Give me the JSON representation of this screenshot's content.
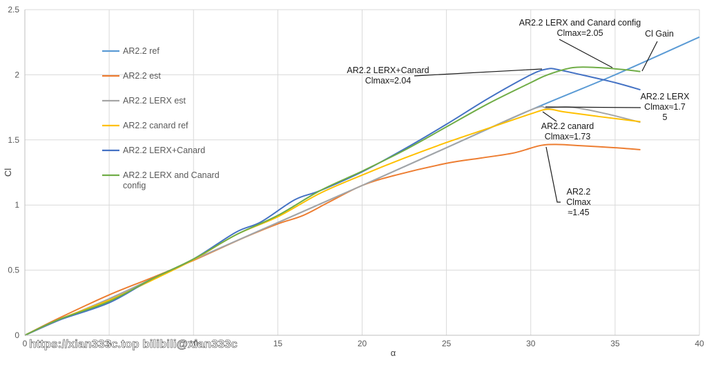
{
  "chart_data": {
    "type": "line",
    "xlabel": "α",
    "ylabel": "Cl",
    "xlim": [
      0,
      40
    ],
    "ylim": [
      0,
      2.5
    ],
    "x_ticks": [
      "0",
      "5",
      "10",
      "15",
      "20",
      "25",
      "30",
      "35",
      "40"
    ],
    "y_ticks": [
      "0",
      "0.5",
      "1",
      "1.5",
      "2",
      "2.5"
    ],
    "grid": true,
    "legend_position": "left",
    "series": [
      {
        "name": "AR2.2 ref",
        "color": "#5B9BD5",
        "points": [
          [
            0,
            0
          ],
          [
            2,
            0.115
          ],
          [
            5,
            0.28
          ],
          [
            8,
            0.46
          ],
          [
            10,
            0.58
          ],
          [
            15,
            0.865
          ],
          [
            20,
            1.15
          ],
          [
            25,
            1.44
          ],
          [
            30,
            1.73
          ],
          [
            35,
            2.0
          ],
          [
            40,
            2.29
          ]
        ]
      },
      {
        "name": "AR2.2 est",
        "color": "#ED7D31",
        "points": [
          [
            0,
            0
          ],
          [
            2,
            0.13
          ],
          [
            5,
            0.31
          ],
          [
            7.5,
            0.44
          ],
          [
            10,
            0.575
          ],
          [
            13,
            0.75
          ],
          [
            15,
            0.855
          ],
          [
            16.5,
            0.92
          ],
          [
            18,
            1.02
          ],
          [
            20,
            1.15
          ],
          [
            22,
            1.23
          ],
          [
            25,
            1.32
          ],
          [
            27,
            1.36
          ],
          [
            29,
            1.4
          ],
          [
            30.5,
            1.455
          ],
          [
            31.5,
            1.465
          ],
          [
            33,
            1.455
          ],
          [
            35,
            1.44
          ],
          [
            36.5,
            1.425
          ]
        ]
      },
      {
        "name": "AR2.2 LERX est",
        "color": "#A5A5A5",
        "points": [
          [
            0,
            0
          ],
          [
            2,
            0.115
          ],
          [
            5,
            0.28
          ],
          [
            8,
            0.46
          ],
          [
            10,
            0.58
          ],
          [
            15,
            0.865
          ],
          [
            20,
            1.15
          ],
          [
            25,
            1.44
          ],
          [
            30,
            1.73
          ],
          [
            31,
            1.745
          ],
          [
            32.5,
            1.75
          ],
          [
            34.5,
            1.7
          ],
          [
            36.5,
            1.635
          ]
        ]
      },
      {
        "name": "AR2.2 canard ref",
        "color": "#FFC000",
        "points": [
          [
            0,
            0
          ],
          [
            2,
            0.12
          ],
          [
            5,
            0.27
          ],
          [
            7.5,
            0.42
          ],
          [
            10,
            0.58
          ],
          [
            12.5,
            0.77
          ],
          [
            15,
            0.91
          ],
          [
            17.5,
            1.09
          ],
          [
            20,
            1.23
          ],
          [
            22.5,
            1.36
          ],
          [
            25,
            1.48
          ],
          [
            27.5,
            1.59
          ],
          [
            30,
            1.7
          ],
          [
            31,
            1.735
          ],
          [
            32,
            1.715
          ],
          [
            34,
            1.68
          ],
          [
            36.5,
            1.64
          ]
        ]
      },
      {
        "name": "AR2.2 LERX+Canard",
        "color": "#4472C4",
        "points": [
          [
            0,
            0
          ],
          [
            2,
            0.115
          ],
          [
            5,
            0.25
          ],
          [
            7.5,
            0.43
          ],
          [
            10,
            0.585
          ],
          [
            12.5,
            0.79
          ],
          [
            14,
            0.87
          ],
          [
            16,
            1.04
          ],
          [
            17.5,
            1.11
          ],
          [
            20,
            1.255
          ],
          [
            22.5,
            1.43
          ],
          [
            25,
            1.62
          ],
          [
            27.5,
            1.82
          ],
          [
            30,
            2.0
          ],
          [
            31,
            2.045
          ],
          [
            31.6,
            2.04
          ],
          [
            33,
            2.0
          ],
          [
            35,
            1.94
          ],
          [
            36.5,
            1.885
          ]
        ]
      },
      {
        "name": "AR2.2 LERX and Canard config",
        "color": "#70AD47",
        "points": [
          [
            0,
            0
          ],
          [
            2,
            0.12
          ],
          [
            5,
            0.26
          ],
          [
            7.5,
            0.43
          ],
          [
            10,
            0.585
          ],
          [
            12.5,
            0.77
          ],
          [
            15,
            0.92
          ],
          [
            17.5,
            1.11
          ],
          [
            20,
            1.26
          ],
          [
            22.5,
            1.42
          ],
          [
            25,
            1.6
          ],
          [
            27.5,
            1.78
          ],
          [
            30,
            1.94
          ],
          [
            31,
            2.0
          ],
          [
            32.5,
            2.055
          ],
          [
            34,
            2.055
          ],
          [
            35.5,
            2.04
          ],
          [
            36.5,
            2.025
          ]
        ]
      }
    ],
    "annotations": [
      {
        "lines": [
          "AR2.2 LERX and Canard config",
          "Clmax=2.05"
        ]
      },
      {
        "lines": [
          "Cl Gain"
        ]
      },
      {
        "lines": [
          "AR2.2 LERX+Canard",
          "Clmax≈2.04"
        ]
      },
      {
        "lines": [
          "AR2.2 LERX",
          "Clmax≈1.7",
          "5"
        ]
      },
      {
        "lines": [
          "AR2.2 canard",
          "Clmax≈1.73"
        ]
      },
      {
        "lines": [
          "AR2.2",
          "Clmax",
          "≈1.45"
        ]
      }
    ]
  },
  "legend_lines": [
    [
      "AR2.2 ref"
    ],
    [
      "AR2.2 est"
    ],
    [
      "AR2.2 LERX est"
    ],
    [
      "AR2.2 canard ref"
    ],
    [
      "AR2.2 LERX+Canard"
    ],
    [
      "AR2.2 LERX and Canard",
      "config"
    ]
  ],
  "watermark": "https://xian333c.top bilibili@xian333c"
}
